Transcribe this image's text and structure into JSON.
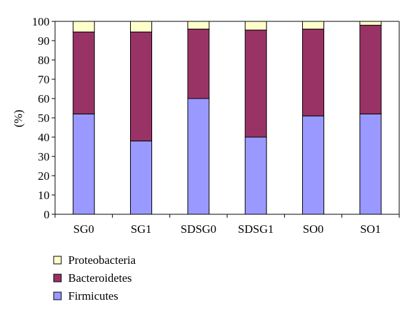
{
  "chart_data": {
    "type": "bar",
    "stacked": true,
    "categories": [
      "SG0",
      "SG1",
      "SDSG0",
      "SDSG1",
      "SO0",
      "SO1"
    ],
    "series": [
      {
        "name": "Firmicutes",
        "color": "#9999ff",
        "values": [
          52,
          38,
          60,
          40,
          51,
          52
        ]
      },
      {
        "name": "Bacteroidetes",
        "color": "#993366",
        "values": [
          42.5,
          56.5,
          36,
          55.5,
          45,
          46
        ]
      },
      {
        "name": "Proteobacteria",
        "color": "#ffffcc",
        "values": [
          5.5,
          5.5,
          4,
          4.5,
          4,
          2
        ]
      }
    ],
    "ylabel": "(%)",
    "ylim": [
      0,
      100
    ],
    "yticks": [
      0,
      10,
      20,
      30,
      40,
      50,
      60,
      70,
      80,
      90,
      100
    ],
    "grid": false,
    "legend_position": "bottom-left"
  }
}
